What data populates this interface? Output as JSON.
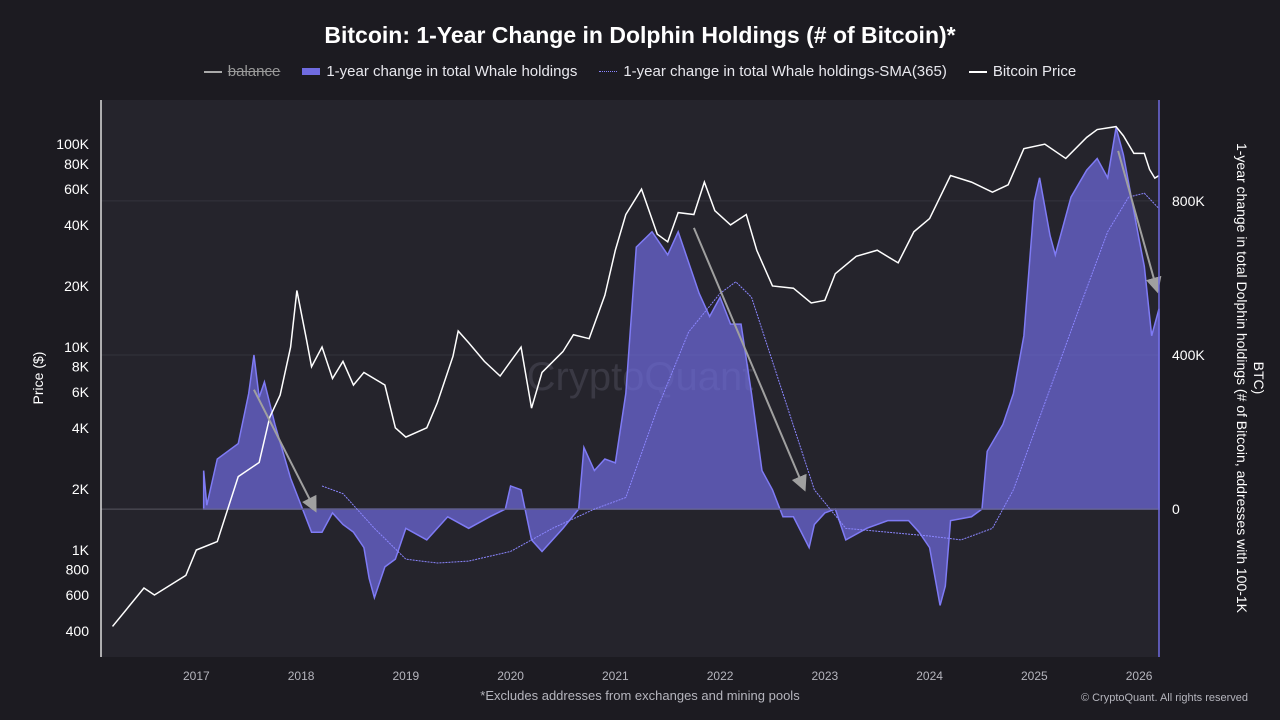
{
  "chart_data": {
    "type": "line",
    "title": "Bitcoin: 1-Year Change in Dolphin Holdings (# of Bitcoin)*",
    "footnote": "*Excludes addresses from exchanges and mining pools",
    "copyright": "© CryptoQuant. All rights reserved",
    "watermark": "CryptoQuant",
    "legend_placement": "top",
    "legend": [
      {
        "label": "balance",
        "style": "line-strikethrough",
        "color": "#aaaaaa"
      },
      {
        "label": "1-year change in total Whale holdings",
        "style": "area",
        "color": "#6f6be0"
      },
      {
        "label": "1-year change in total Whale holdings-SMA(365)",
        "style": "dotted",
        "color": "#8b86ff"
      },
      {
        "label": "Bitcoin Price",
        "style": "line",
        "color": "#ffffff"
      }
    ],
    "ylabel_left": "Price ($)",
    "ylabel_right": "1-year change in total Dolphin holdings (# of Bitcoin, addresses with 100-1K BTC)",
    "y_left_scale": "log",
    "y_left_ticks": [
      "100K",
      "80K",
      "60K",
      "40K",
      "20K",
      "10K",
      "8K",
      "6K",
      "4K",
      "2K",
      "1K",
      "800",
      "600",
      "400"
    ],
    "y_left_tick_values": [
      100000,
      80000,
      60000,
      40000,
      20000,
      10000,
      8000,
      6000,
      4000,
      2000,
      1000,
      800,
      600,
      400
    ],
    "y_left_range": [
      297,
      165000
    ],
    "y_right_ticks": [
      "800K",
      "400K",
      "0"
    ],
    "y_right_tick_values": [
      800000,
      400000,
      0
    ],
    "y_right_range": [
      -384000,
      1062000
    ],
    "x_ticks": [
      "2017",
      "2018",
      "2019",
      "2020",
      "2021",
      "2022",
      "2023",
      "2024",
      "2025",
      "2026"
    ],
    "x_range": [
      2016.09,
      2026.19
    ],
    "grid": true,
    "colors": {
      "background": "#1c1b21",
      "plot": "#25242c",
      "area": "#6f6be0",
      "area_line": "#7f7bf5",
      "price": "#ffffff",
      "sma": "#8b86ff",
      "arrow": "#a0a0a0"
    },
    "series": [
      {
        "name": "Bitcoin Price",
        "axis": "left",
        "x": [
          2016.2,
          2016.5,
          2016.6,
          2016.9,
          2017.0,
          2017.2,
          2017.4,
          2017.6,
          2017.7,
          2017.8,
          2017.9,
          2017.96,
          2018.05,
          2018.1,
          2018.2,
          2018.3,
          2018.4,
          2018.5,
          2018.6,
          2018.8,
          2018.9,
          2019.0,
          2019.2,
          2019.3,
          2019.45,
          2019.5,
          2019.6,
          2019.75,
          2019.9,
          2020.0,
          2020.1,
          2020.2,
          2020.3,
          2020.5,
          2020.6,
          2020.75,
          2020.9,
          2021.0,
          2021.1,
          2021.25,
          2021.4,
          2021.5,
          2021.6,
          2021.75,
          2021.85,
          2021.95,
          2022.1,
          2022.25,
          2022.35,
          2022.5,
          2022.7,
          2022.87,
          2023.0,
          2023.1,
          2023.3,
          2023.5,
          2023.7,
          2023.85,
          2024.0,
          2024.2,
          2024.4,
          2024.6,
          2024.75,
          2024.9,
          2025.1,
          2025.3,
          2025.5,
          2025.6,
          2025.78,
          2025.85,
          2025.95,
          2026.05,
          2026.1,
          2026.15,
          2026.19
        ],
        "values": [
          420,
          650,
          600,
          750,
          1000,
          1100,
          2300,
          2700,
          4500,
          5800,
          10000,
          19000,
          11000,
          8000,
          10000,
          7000,
          8500,
          6500,
          7500,
          6500,
          4000,
          3600,
          4000,
          5300,
          9000,
          12000,
          10500,
          8500,
          7200,
          8500,
          10000,
          5000,
          7500,
          9500,
          11500,
          11000,
          18000,
          30000,
          45000,
          60000,
          36000,
          33000,
          46000,
          45000,
          65000,
          47000,
          40000,
          45000,
          30000,
          20000,
          19500,
          16500,
          17000,
          23000,
          28000,
          30000,
          26000,
          37000,
          43000,
          70000,
          65000,
          58000,
          63000,
          95000,
          100000,
          85000,
          108000,
          118000,
          122000,
          110000,
          90000,
          90000,
          75000,
          68000,
          70000
        ]
      },
      {
        "name": "1-year change in total Whale holdings",
        "axis": "right",
        "x": [
          2017.07,
          2017.1,
          2017.2,
          2017.4,
          2017.5,
          2017.55,
          2017.6,
          2017.65,
          2017.75,
          2017.9,
          2018.0,
          2018.1,
          2018.2,
          2018.3,
          2018.4,
          2018.5,
          2018.6,
          2018.65,
          2018.7,
          2018.8,
          2018.9,
          2019.0,
          2019.2,
          2019.4,
          2019.6,
          2019.8,
          2019.95,
          2020.0,
          2020.1,
          2020.2,
          2020.3,
          2020.5,
          2020.65,
          2020.7,
          2020.8,
          2020.9,
          2021.0,
          2021.1,
          2021.2,
          2021.35,
          2021.5,
          2021.6,
          2021.8,
          2021.9,
          2022.0,
          2022.1,
          2022.2,
          2022.3,
          2022.4,
          2022.5,
          2022.6,
          2022.7,
          2022.85,
          2022.9,
          2023.0,
          2023.1,
          2023.2,
          2023.4,
          2023.6,
          2023.8,
          2023.9,
          2024.0,
          2024.1,
          2024.15,
          2024.2,
          2024.4,
          2024.5,
          2024.55,
          2024.7,
          2024.8,
          2024.9,
          2025.0,
          2025.05,
          2025.15,
          2025.2,
          2025.35,
          2025.5,
          2025.6,
          2025.7,
          2025.78,
          2025.85,
          2026.0,
          2026.05,
          2026.12,
          2026.19
        ],
        "values": [
          100000,
          10000,
          130000,
          170000,
          300000,
          400000,
          290000,
          330000,
          220000,
          80000,
          10000,
          -60000,
          -60000,
          -10000,
          -40000,
          -60000,
          -100000,
          -180000,
          -230000,
          -150000,
          -130000,
          -50000,
          -80000,
          -20000,
          -50000,
          -20000,
          0,
          60000,
          50000,
          -80000,
          -110000,
          -50000,
          0,
          160000,
          100000,
          130000,
          120000,
          300000,
          680000,
          720000,
          660000,
          720000,
          560000,
          500000,
          550000,
          480000,
          480000,
          300000,
          100000,
          50000,
          -20000,
          -20000,
          -100000,
          -40000,
          -10000,
          0,
          -80000,
          -50000,
          -30000,
          -30000,
          -60000,
          -100000,
          -250000,
          -200000,
          -30000,
          -20000,
          0,
          150000,
          220000,
          300000,
          450000,
          800000,
          860000,
          710000,
          660000,
          810000,
          880000,
          910000,
          860000,
          990000,
          920000,
          700000,
          630000,
          450000,
          520000
        ]
      },
      {
        "name": "1-year change in total Whale holdings-SMA(365)",
        "axis": "right",
        "x": [
          2018.2,
          2018.4,
          2018.7,
          2019.0,
          2019.3,
          2019.6,
          2020.0,
          2020.4,
          2020.8,
          2021.1,
          2021.4,
          2021.7,
          2022.0,
          2022.15,
          2022.3,
          2022.6,
          2022.9,
          2023.2,
          2023.6,
          2024.0,
          2024.3,
          2024.6,
          2024.8,
          2025.0,
          2025.4,
          2025.7,
          2025.9,
          2026.05,
          2026.19
        ],
        "values": [
          60000,
          40000,
          -50000,
          -130000,
          -140000,
          -135000,
          -110000,
          -50000,
          0,
          30000,
          260000,
          460000,
          560000,
          590000,
          550000,
          300000,
          50000,
          -50000,
          -60000,
          -70000,
          -80000,
          -50000,
          50000,
          200000,
          500000,
          720000,
          810000,
          820000,
          780000
        ]
      }
    ],
    "annotations": [
      {
        "type": "arrow",
        "axis": "right",
        "from": [
          2017.55,
          310000
        ],
        "to": [
          2018.13,
          0
        ]
      },
      {
        "type": "arrow",
        "axis": "right",
        "from": [
          2021.75,
          730000
        ],
        "to": [
          2022.8,
          55000
        ]
      },
      {
        "type": "arrow",
        "axis": "right",
        "from": [
          2025.8,
          930000
        ],
        "to": [
          2026.17,
          570000
        ]
      }
    ]
  }
}
